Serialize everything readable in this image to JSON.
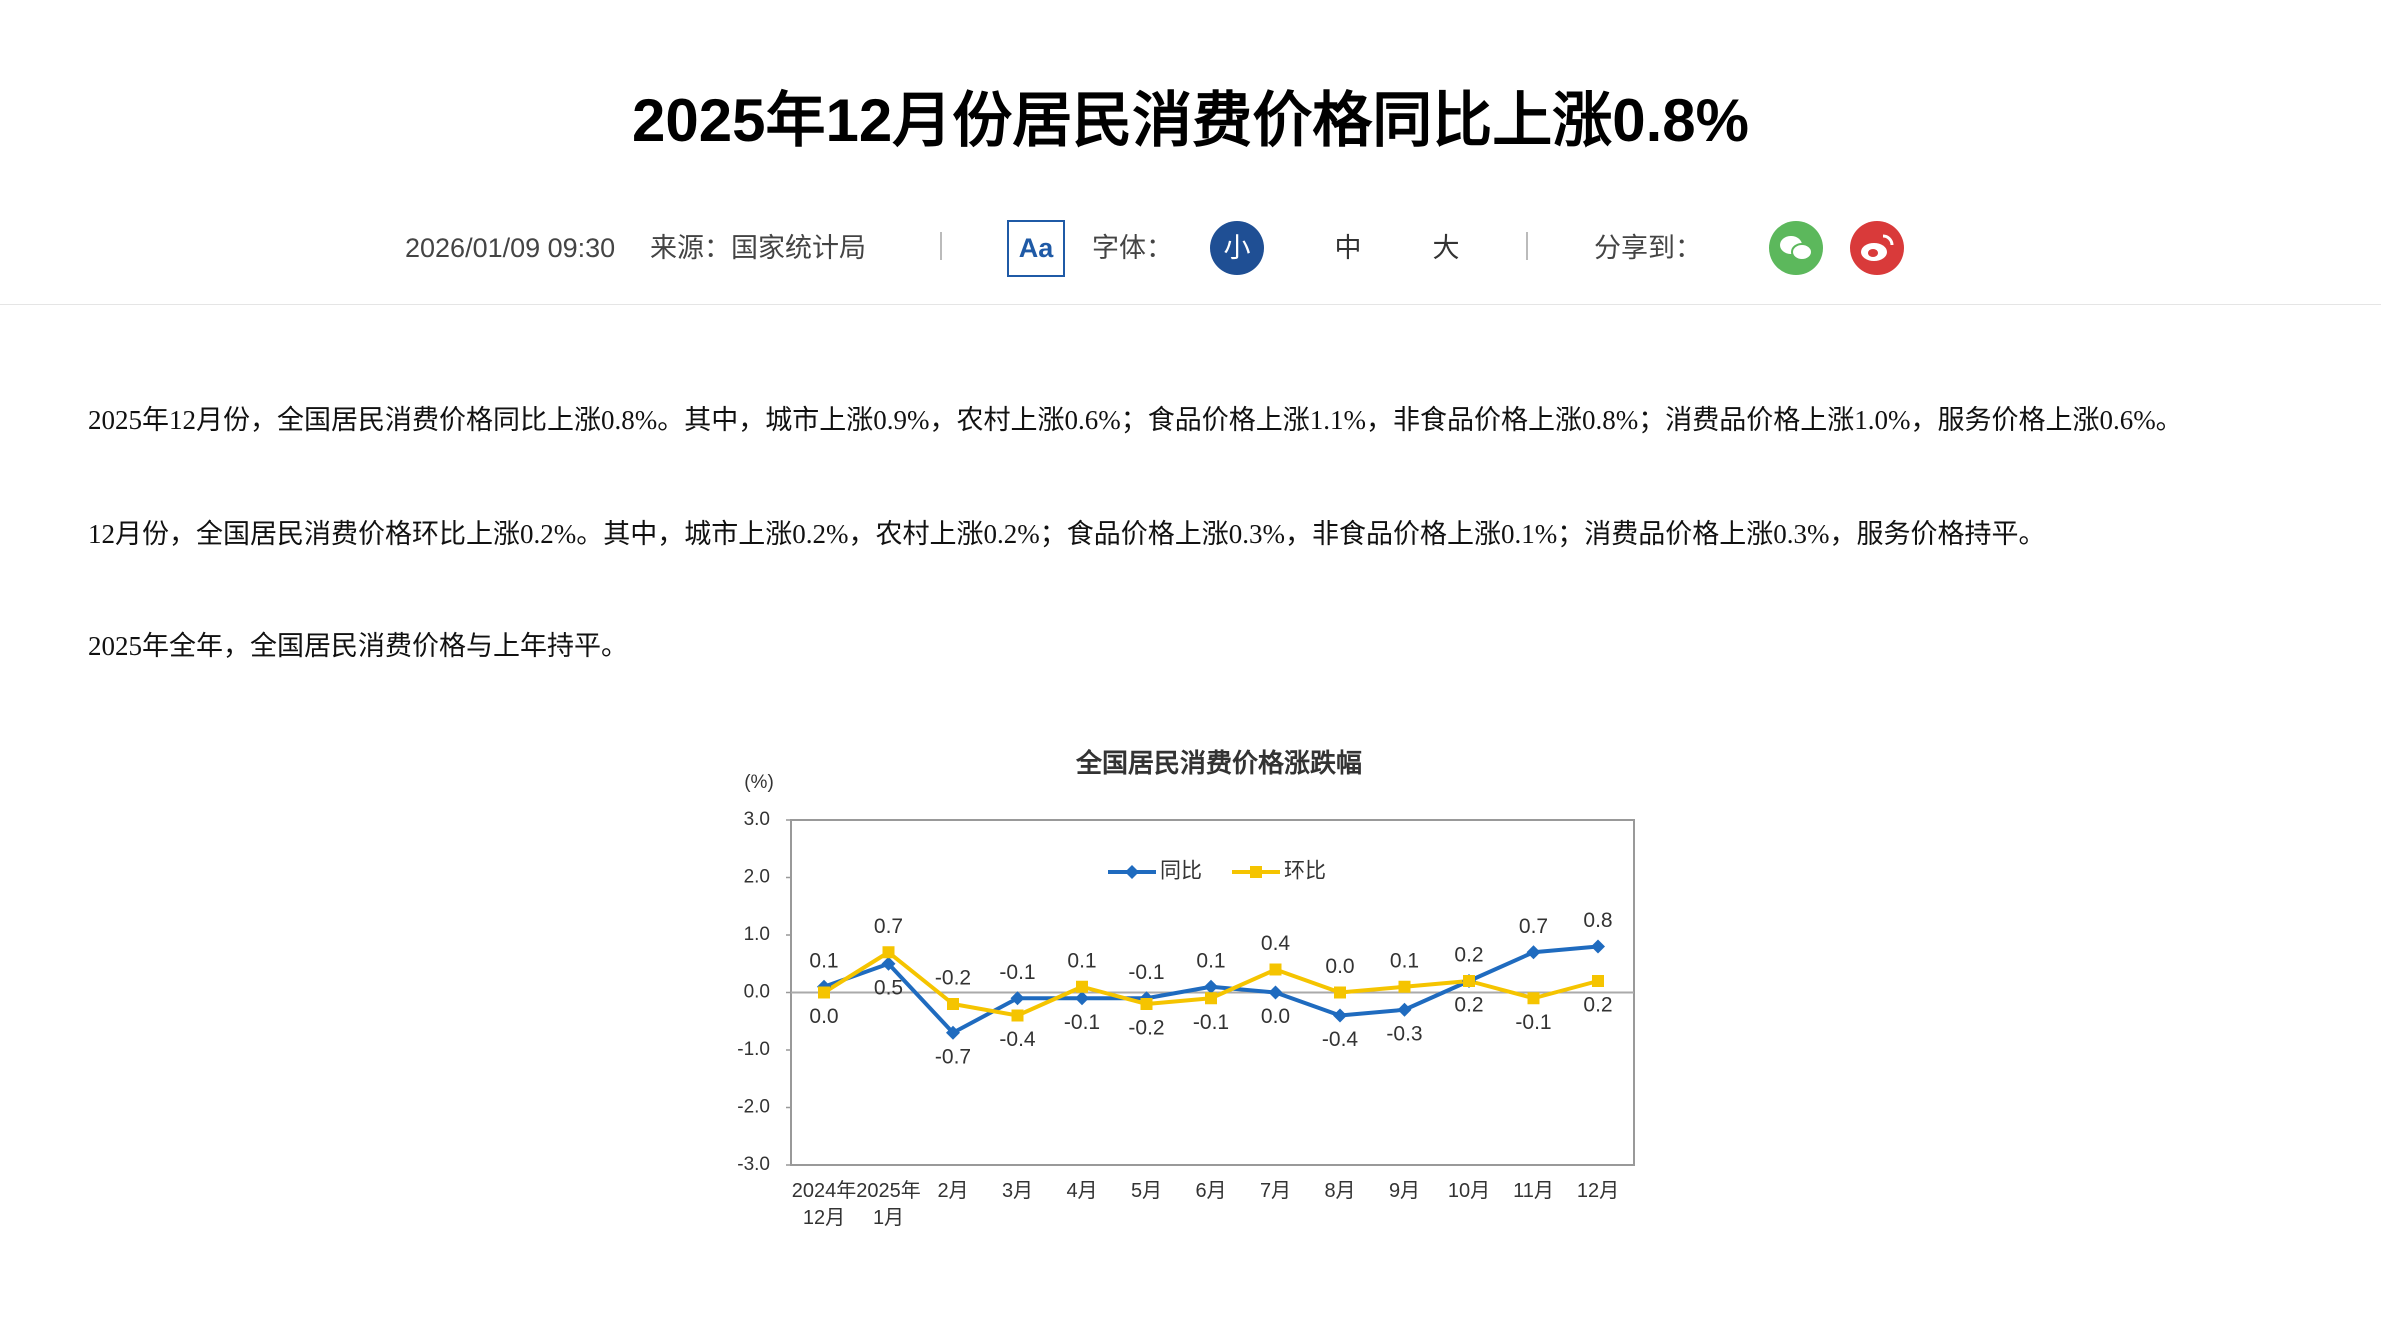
{
  "header": {
    "title": "2025年12月份居民消费价格同比上涨0.8%",
    "date": "2026/01/09 09:30",
    "source": "来源：国家统计局",
    "font_icon": "Aa",
    "font_label": "字体：",
    "font_sizes": [
      "小",
      "中",
      "大"
    ],
    "share_label": "分享到："
  },
  "paragraphs": [
    "2025年12月份，全国居民消费价格同比上涨0.8%。其中，城市上涨0.9%，农村上涨0.6%；食品价格上涨1.1%，非食品价格上涨0.8%；消费品价格上涨1.0%，服务价格上涨0.6%。",
    "12月份，全国居民消费价格环比上涨0.2%。其中，城市上涨0.2%，农村上涨0.2%；食品价格上涨0.3%，非食品价格上涨0.1%；消费品价格上涨0.3%，服务价格持平。",
    "2025年全年，全国居民消费价格与上年持平。"
  ],
  "chart_data": {
    "type": "line",
    "title": "全国居民消费价格涨跌幅",
    "y_label": "(%)",
    "categories": [
      "2024年\n12月",
      "2025年\n1月",
      "2月",
      "3月",
      "4月",
      "5月",
      "6月",
      "7月",
      "8月",
      "9月",
      "10月",
      "11月",
      "12月"
    ],
    "series": [
      {
        "name": "同比",
        "color": "#1f6bbf",
        "marker": "diamond",
        "values": [
          0.1,
          0.5,
          -0.7,
          -0.1,
          -0.1,
          -0.1,
          0.1,
          0.0,
          -0.4,
          -0.3,
          0.2,
          0.7,
          0.8
        ],
        "value_labels": [
          "0.1",
          "0.5",
          "-0.7",
          "-0.1",
          "-0.1",
          "-0.1",
          "0.1",
          "0.0",
          "-0.4",
          "-0.3",
          "0.2",
          "0.7",
          "0.8"
        ]
      },
      {
        "name": "环比",
        "color": "#f5c400",
        "marker": "square",
        "values": [
          0.0,
          0.7,
          -0.2,
          -0.4,
          0.1,
          -0.2,
          -0.1,
          0.4,
          0.0,
          0.1,
          0.2,
          -0.1,
          0.2
        ],
        "value_labels": [
          "0.0",
          "0.7",
          "-0.2",
          "-0.4",
          "0.1",
          "-0.2",
          "-0.1",
          "0.4",
          "0.0",
          "0.1",
          "0.2",
          "-0.1",
          "0.2"
        ]
      }
    ],
    "ylim": [
      -3,
      3
    ],
    "yticks": [
      {
        "value": -3,
        "label": "-3.0"
      },
      {
        "value": -2,
        "label": "-2.0"
      },
      {
        "value": -1,
        "label": "-1.0"
      },
      {
        "value": 0,
        "label": "0.0"
      },
      {
        "value": 1,
        "label": "1.0"
      },
      {
        "value": 2,
        "label": "2.0"
      },
      {
        "value": 3,
        "label": "3.0"
      }
    ],
    "zero_line": true,
    "legend": "top"
  }
}
